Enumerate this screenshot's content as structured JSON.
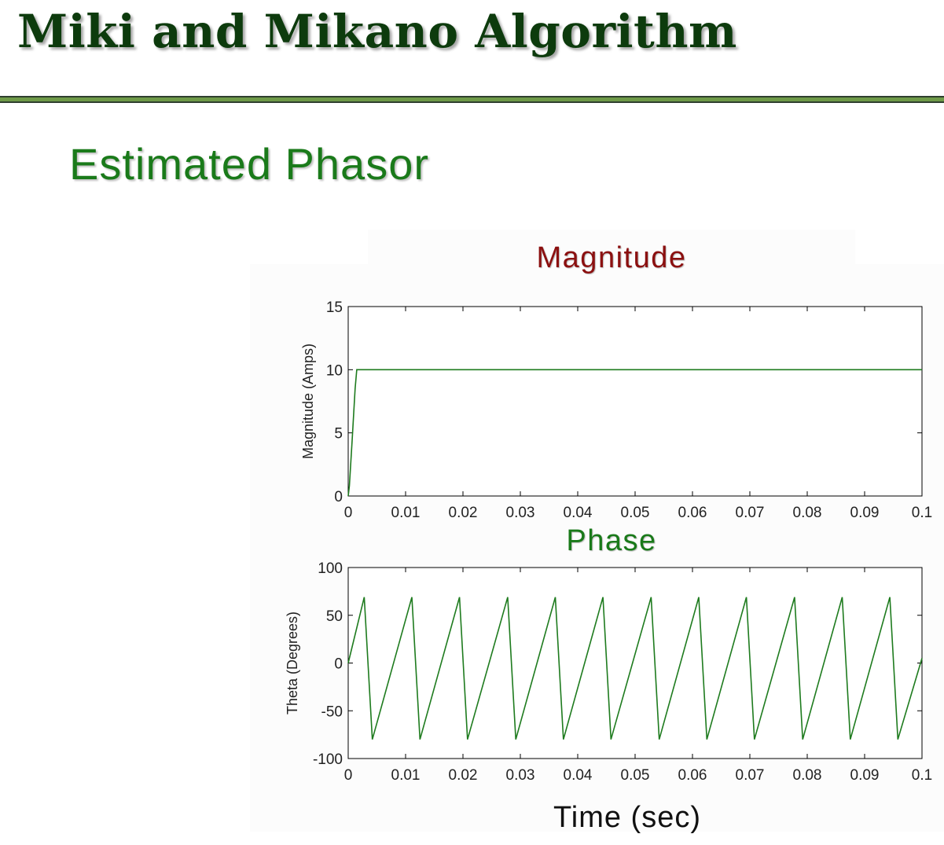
{
  "slide": {
    "title": "Miki and Mikano Algorithm",
    "subtitle": "Estimated Phasor",
    "x_axis_caption": "Time (sec)"
  },
  "colors": {
    "title": "#0d3b0d",
    "subtitle": "#1a7a1a",
    "rule_dark": "#2f3f2f",
    "rule_green": "#6e9a48",
    "magnitude_title": "#8b1010",
    "phase_title": "#1a7a1a",
    "series": "#1e7b1e"
  },
  "chart_data": [
    {
      "type": "line",
      "title": "Magnitude",
      "xlabel": "",
      "ylabel": "Magnitude (Amps)",
      "xlim": [
        0,
        0.1
      ],
      "ylim": [
        0,
        15
      ],
      "xticks": [
        0,
        0.01,
        0.02,
        0.03,
        0.04,
        0.05,
        0.06,
        0.07,
        0.08,
        0.09,
        0.1
      ],
      "xtick_labels": [
        "0",
        "0.01",
        "0.02",
        "0.03",
        "0.04",
        "0.05",
        "0.06",
        "0.07",
        "0.08",
        "0.09",
        "0.1"
      ],
      "yticks": [
        0,
        5,
        10,
        15
      ],
      "ytick_labels": [
        "0",
        "5",
        "10",
        "15"
      ],
      "grid": false,
      "legend": "none",
      "series": [
        {
          "x": [
            0,
            0.0002,
            0.0007,
            0.0012,
            0.0015,
            0.1
          ],
          "y": [
            0,
            0.8,
            4.5,
            8.5,
            10,
            10
          ]
        }
      ]
    },
    {
      "type": "line",
      "title": "Phase",
      "xlabel": "Time (sec)",
      "ylabel": "Theta (Degrees)",
      "xlim": [
        0,
        0.1
      ],
      "ylim": [
        -100,
        100
      ],
      "xticks": [
        0,
        0.01,
        0.02,
        0.03,
        0.04,
        0.05,
        0.06,
        0.07,
        0.08,
        0.09,
        0.1
      ],
      "xtick_labels": [
        "0",
        "0.01",
        "0.02",
        "0.03",
        "0.04",
        "0.05",
        "0.06",
        "0.07",
        "0.08",
        "0.09",
        "0.1"
      ],
      "yticks": [
        -100,
        -50,
        0,
        50,
        100
      ],
      "ytick_labels": [
        "-100",
        "-50",
        "0",
        "50",
        "100"
      ],
      "grid": false,
      "legend": "none",
      "series": [
        {
          "x": [
            0,
            0.0028,
            0.0042,
            0.0111,
            0.0125,
            0.0194,
            0.0208,
            0.0278,
            0.0292,
            0.0361,
            0.0375,
            0.0444,
            0.0458,
            0.0528,
            0.0542,
            0.0611,
            0.0625,
            0.0694,
            0.0708,
            0.0778,
            0.0792,
            0.0861,
            0.0875,
            0.0944,
            0.0958,
            0.1
          ],
          "y": [
            0,
            69,
            -80,
            69,
            -80,
            69,
            -80,
            69,
            -80,
            69,
            -80,
            69,
            -80,
            69,
            -80,
            69,
            -80,
            69,
            -80,
            69,
            -80,
            69,
            -80,
            69,
            -80,
            5
          ]
        }
      ]
    }
  ]
}
